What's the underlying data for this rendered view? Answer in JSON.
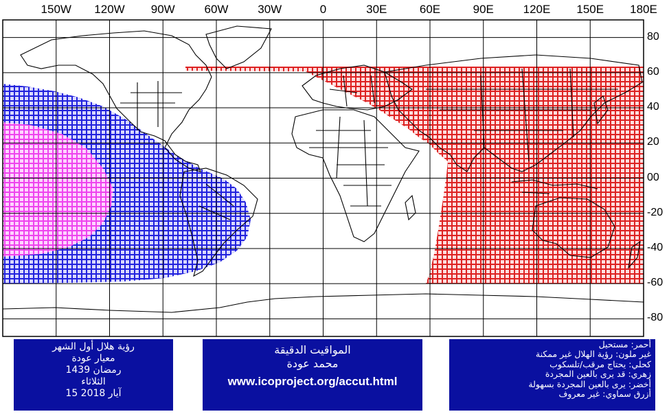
{
  "map": {
    "lon_labels": [
      "150W",
      "120W",
      "90W",
      "60W",
      "30W",
      "0",
      "30E",
      "60E",
      "90E",
      "120E",
      "150E",
      "180E"
    ],
    "lat_labels": [
      "80",
      "60",
      "40",
      "20",
      "00",
      "-20",
      "-40",
      "-60",
      "-80"
    ],
    "colors": {
      "red": "#dd2222",
      "blue": "#2222dd",
      "magenta": "#ee44ee",
      "grid": "#000000"
    }
  },
  "boxes": {
    "left": [
      "رؤية هلال أول الشهر",
      "معيار عودة",
      "رمضان 1439",
      "الثلاثاء",
      "15 آيار 2018"
    ],
    "middle": [
      "المواقيت الدقيقة",
      "محمد عودة",
      "www.icoproject.org/accut.html"
    ],
    "right": [
      "أحمر: مستحيل",
      "غير ملون: رؤية الهلال غير ممكنة",
      "كحلي: يحتاج مرقب/تلسكوب",
      "زهري: قد يرى بالعين المجردة",
      "أخضر: يرى بالعين المجردة بسهولة",
      "أزرق سماوي: غير معروف"
    ]
  }
}
